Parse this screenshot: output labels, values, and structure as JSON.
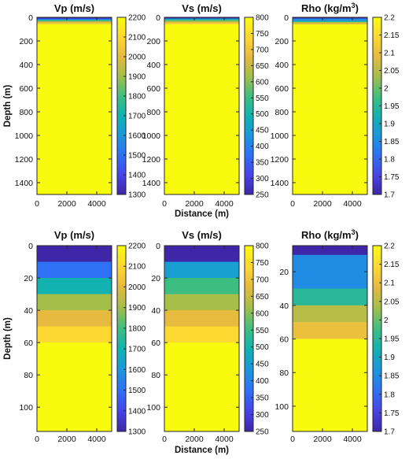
{
  "chart_data": [
    {
      "type": "heatmap",
      "title": "Vp (m/s)",
      "xlabel": "",
      "ylabel": "Depth (m)",
      "xlim": [
        0,
        5000
      ],
      "ylim": [
        0,
        1500
      ],
      "x_ticks": [
        "0",
        "2000",
        "4000"
      ],
      "y_ticks": [
        "0",
        "200",
        "400",
        "600",
        "800",
        "1000",
        "1200",
        "1400"
      ],
      "colorbar": {
        "min": 1300,
        "max": 2200,
        "ticks": [
          "1300",
          "1400",
          "1500",
          "1600",
          "1700",
          "1800",
          "1900",
          "2000",
          "2100",
          "2200"
        ]
      },
      "layers": [
        {
          "top": 0,
          "bottom": 10,
          "value": 1300
        },
        {
          "top": 10,
          "bottom": 20,
          "value": 1500
        },
        {
          "top": 20,
          "bottom": 30,
          "value": 1700
        },
        {
          "top": 30,
          "bottom": 40,
          "value": 1900
        },
        {
          "top": 40,
          "bottom": 50,
          "value": 2000
        },
        {
          "top": 50,
          "bottom": 60,
          "value": 2100
        },
        {
          "top": 60,
          "bottom": 1500,
          "value": 2200
        }
      ]
    },
    {
      "type": "heatmap",
      "title": "Vs (m/s)",
      "xlabel": "Distance (m)",
      "ylabel": "",
      "xlim": [
        0,
        5000
      ],
      "ylim": [
        0,
        1500
      ],
      "x_ticks": [
        "0",
        "2000",
        "4000"
      ],
      "y_ticks": [
        "0",
        "200",
        "400",
        "600",
        "800",
        "1000",
        "1200",
        "1400"
      ],
      "colorbar": {
        "min": 250,
        "max": 800,
        "ticks": [
          "250",
          "300",
          "350",
          "400",
          "450",
          "500",
          "550",
          "600",
          "650",
          "700",
          "750",
          "800"
        ]
      },
      "layers": [
        {
          "top": 0,
          "bottom": 10,
          "value": 250
        },
        {
          "top": 10,
          "bottom": 20,
          "value": 450
        },
        {
          "top": 20,
          "bottom": 30,
          "value": 550
        },
        {
          "top": 30,
          "bottom": 40,
          "value": 620
        },
        {
          "top": 40,
          "bottom": 50,
          "value": 680
        },
        {
          "top": 50,
          "bottom": 60,
          "value": 740
        },
        {
          "top": 60,
          "bottom": 1500,
          "value": 800
        }
      ]
    },
    {
      "type": "heatmap",
      "title": "Rho (kg/m",
      "title_sup": "3",
      "title_end": ")",
      "xlabel": "",
      "ylabel": "",
      "xlim": [
        0,
        5000
      ],
      "ylim": [
        0,
        1500
      ],
      "x_ticks": [
        "0",
        "2000",
        "4000"
      ],
      "y_ticks": [
        "0",
        "200",
        "400",
        "600",
        "800",
        "1000",
        "1200",
        "1400"
      ],
      "colorbar": {
        "min": 1.7,
        "max": 2.2,
        "ticks": [
          "1.7",
          "1.75",
          "1.8",
          "1.85",
          "1.9",
          "1.95",
          "2",
          "2.05",
          "2.1",
          "2.15",
          "2.2"
        ]
      },
      "layers": [
        {
          "top": 0,
          "bottom": 10,
          "value": 1.7
        },
        {
          "top": 10,
          "bottom": 30,
          "value": 1.85
        },
        {
          "top": 30,
          "bottom": 40,
          "value": 1.95
        },
        {
          "top": 40,
          "bottom": 50,
          "value": 2.05
        },
        {
          "top": 50,
          "bottom": 60,
          "value": 2.1
        },
        {
          "top": 60,
          "bottom": 1500,
          "value": 2.2
        }
      ]
    },
    {
      "type": "heatmap",
      "title": "Vp (m/s)",
      "xlabel": "",
      "ylabel": "Depth (m)",
      "xlim": [
        0,
        5000
      ],
      "ylim": [
        0,
        115
      ],
      "x_ticks": [
        "0",
        "2000",
        "4000"
      ],
      "y_ticks": [
        "0",
        "20",
        "40",
        "60",
        "80",
        "100"
      ],
      "colorbar": {
        "min": 1300,
        "max": 2200,
        "ticks": [
          "1300",
          "1400",
          "1500",
          "1600",
          "1700",
          "1800",
          "1900",
          "2000",
          "2100",
          "2200"
        ]
      },
      "layers": [
        {
          "top": 0,
          "bottom": 10,
          "value": 1300
        },
        {
          "top": 10,
          "bottom": 20,
          "value": 1500
        },
        {
          "top": 20,
          "bottom": 30,
          "value": 1700
        },
        {
          "top": 30,
          "bottom": 40,
          "value": 1900
        },
        {
          "top": 40,
          "bottom": 50,
          "value": 2000
        },
        {
          "top": 50,
          "bottom": 60,
          "value": 2100
        },
        {
          "top": 60,
          "bottom": 115,
          "value": 2200
        }
      ]
    },
    {
      "type": "heatmap",
      "title": "Vs (m/s)",
      "xlabel": "Distance (m)",
      "ylabel": "",
      "xlim": [
        0,
        5000
      ],
      "ylim": [
        0,
        115
      ],
      "x_ticks": [
        "0",
        "2000",
        "4000"
      ],
      "y_ticks": [
        "0",
        "20",
        "40",
        "60",
        "80",
        "100"
      ],
      "colorbar": {
        "min": 250,
        "max": 800,
        "ticks": [
          "250",
          "300",
          "350",
          "400",
          "450",
          "500",
          "550",
          "600",
          "650",
          "700",
          "750",
          "800"
        ]
      },
      "layers": [
        {
          "top": 0,
          "bottom": 10,
          "value": 250
        },
        {
          "top": 10,
          "bottom": 20,
          "value": 450
        },
        {
          "top": 20,
          "bottom": 30,
          "value": 550
        },
        {
          "top": 30,
          "bottom": 40,
          "value": 620
        },
        {
          "top": 40,
          "bottom": 50,
          "value": 680
        },
        {
          "top": 50,
          "bottom": 60,
          "value": 740
        },
        {
          "top": 60,
          "bottom": 115,
          "value": 800
        }
      ]
    },
    {
      "type": "heatmap",
      "title": "Rho (kg/m",
      "title_sup": "3",
      "title_end": ")",
      "xlabel": "",
      "ylabel": "",
      "xlim": [
        0,
        5000
      ],
      "ylim": [
        4.5,
        115
      ],
      "x_ticks": [
        "0",
        "2000",
        "4000"
      ],
      "y_ticks": [
        "20",
        "40",
        "60",
        "80",
        "100"
      ],
      "colorbar": {
        "min": 1.7,
        "max": 2.2,
        "ticks": [
          "1.7",
          "1.75",
          "1.8",
          "1.85",
          "1.9",
          "1.95",
          "2",
          "2.05",
          "2.1",
          "2.15",
          "2.2"
        ]
      },
      "layers": [
        {
          "top": 0,
          "bottom": 10,
          "value": 1.7
        },
        {
          "top": 10,
          "bottom": 30,
          "value": 1.85
        },
        {
          "top": 30,
          "bottom": 40,
          "value": 1.95
        },
        {
          "top": 40,
          "bottom": 50,
          "value": 2.05
        },
        {
          "top": 50,
          "bottom": 60,
          "value": 2.1
        },
        {
          "top": 60,
          "bottom": 115,
          "value": 2.2
        }
      ]
    }
  ],
  "colormap": [
    "#3e26a8",
    "#4744e8",
    "#2e71f4",
    "#1b97dd",
    "#11b2b0",
    "#40bf7e",
    "#a4be4a",
    "#e5ba3e",
    "#fed832",
    "#f9fb0e"
  ]
}
